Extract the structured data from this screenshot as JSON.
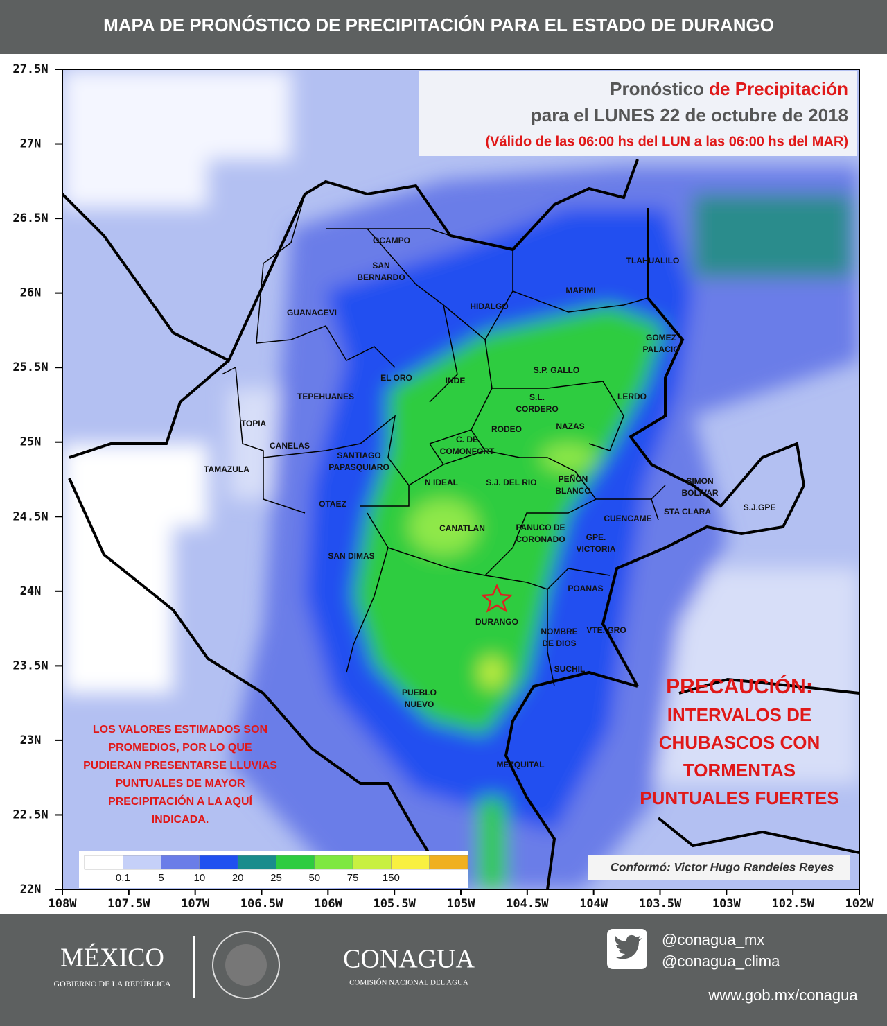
{
  "header": {
    "title": "MAPA DE PRONÓSTICO DE PRECIPITACIÓN PARA EL ESTADO DE DURANGO"
  },
  "map": {
    "lat_labels": [
      "27.5N",
      "27N",
      "26.5N",
      "26N",
      "25.5N",
      "25N",
      "24.5N",
      "24N",
      "23.5N",
      "23N",
      "22.5N",
      "22N"
    ],
    "lon_labels": [
      "108W",
      "107.5W",
      "107W",
      "106.5W",
      "106W",
      "105.5W",
      "105W",
      "104.5W",
      "104W",
      "103.5W",
      "103W",
      "102.5W",
      "102W"
    ],
    "forecast_box": {
      "line1_a": "Pronóstico",
      "line1_b": "de Precipitación",
      "line2": "para el LUNES 22 de octubre de 2018",
      "line3": "(Válido de las 06:00 hs del LUN a las 06:00 hs del MAR)"
    },
    "municipalities": [
      {
        "lines": [
          "OCAMPO"
        ]
      },
      {
        "lines": [
          "SAN",
          "BERNARDO"
        ]
      },
      {
        "lines": [
          "GUANACEVI"
        ]
      },
      {
        "lines": [
          "HIDALGO"
        ]
      },
      {
        "lines": [
          "MAPIMI"
        ]
      },
      {
        "lines": [
          "TLAHUALILO"
        ]
      },
      {
        "lines": [
          "GOMEZ",
          "PALACIO"
        ]
      },
      {
        "lines": [
          "EL ORO"
        ]
      },
      {
        "lines": [
          "INDE"
        ]
      },
      {
        "lines": [
          "S.P. GALLO"
        ]
      },
      {
        "lines": [
          "TEPEHUANES"
        ]
      },
      {
        "lines": [
          "S.L.",
          "CORDERO"
        ]
      },
      {
        "lines": [
          "LERDO"
        ]
      },
      {
        "lines": [
          "TOPIA"
        ]
      },
      {
        "lines": [
          "RODEO"
        ]
      },
      {
        "lines": [
          "NAZAS"
        ]
      },
      {
        "lines": [
          "C. DE",
          "COMONFORT"
        ]
      },
      {
        "lines": [
          "CANELAS"
        ]
      },
      {
        "lines": [
          "SANTIAGO",
          "PAPASQUIARO"
        ]
      },
      {
        "lines": [
          "TAMAZULA"
        ]
      },
      {
        "lines": [
          "N IDEAL"
        ]
      },
      {
        "lines": [
          "S.J. DEL RIO"
        ]
      },
      {
        "lines": [
          "PEÑON",
          "BLANCO"
        ]
      },
      {
        "lines": [
          "SIMON",
          "BOLIVAR"
        ]
      },
      {
        "lines": [
          "OTAEZ"
        ]
      },
      {
        "lines": [
          "STA CLARA"
        ]
      },
      {
        "lines": [
          "S.J.GPE"
        ]
      },
      {
        "lines": [
          "CUENCAME"
        ]
      },
      {
        "lines": [
          "CANATLAN"
        ]
      },
      {
        "lines": [
          "PANUCO DE",
          "CORONADO"
        ]
      },
      {
        "lines": [
          "GPE.",
          "VICTORIA"
        ]
      },
      {
        "lines": [
          "SAN DIMAS"
        ]
      },
      {
        "lines": [
          "POANAS"
        ]
      },
      {
        "lines": [
          "DURANGO"
        ]
      },
      {
        "lines": [
          "NOMBRE",
          "DE DIOS"
        ]
      },
      {
        "lines": [
          "VTE. GRO"
        ]
      },
      {
        "lines": [
          "SUCHIL"
        ]
      },
      {
        "lines": [
          "PUEBLO",
          "NUEVO"
        ]
      },
      {
        "lines": [
          "MEZQUITAL"
        ]
      }
    ],
    "note": [
      "LOS VALORES ESTIMADOS SON",
      "PROMEDIOS, POR LO QUE",
      "PUDIERAN PRESENTARSE LLUVIAS",
      "PUNTUALES DE MAYOR",
      "PRECIPITACIÓN A LA AQUÍ",
      "INDICADA."
    ],
    "caution": {
      "title": "PRECAUCIÓN:",
      "lines": [
        "INTERVALOS DE",
        "CHUBASCOS CON",
        "TORMENTAS",
        "PUNTUALES FUERTES"
      ]
    },
    "credit": "Conformó:  Victor Hugo Randeles Reyes",
    "legend": {
      "colors": [
        "#ffffff",
        "#c5d0f8",
        "#6a7de8",
        "#2050f0",
        "#1a8c8c",
        "#2ecc40",
        "#7ee840",
        "#c8f040",
        "#f8f040",
        "#f0b020"
      ],
      "labels": [
        "0.1",
        "5",
        "10",
        "20",
        "25",
        "50",
        "75",
        "150"
      ]
    }
  },
  "footer": {
    "mexico": "MÉXICO",
    "gobierno": "GOBIERNO DE LA REPÚBLICA",
    "conagua": "CONAGUA",
    "conagua_sub": "COMISIÓN NACIONAL DEL AGUA",
    "twitter_1": "@conagua_mx",
    "twitter_2": "@conagua_clima",
    "web": "www.gob.mx/conagua"
  }
}
